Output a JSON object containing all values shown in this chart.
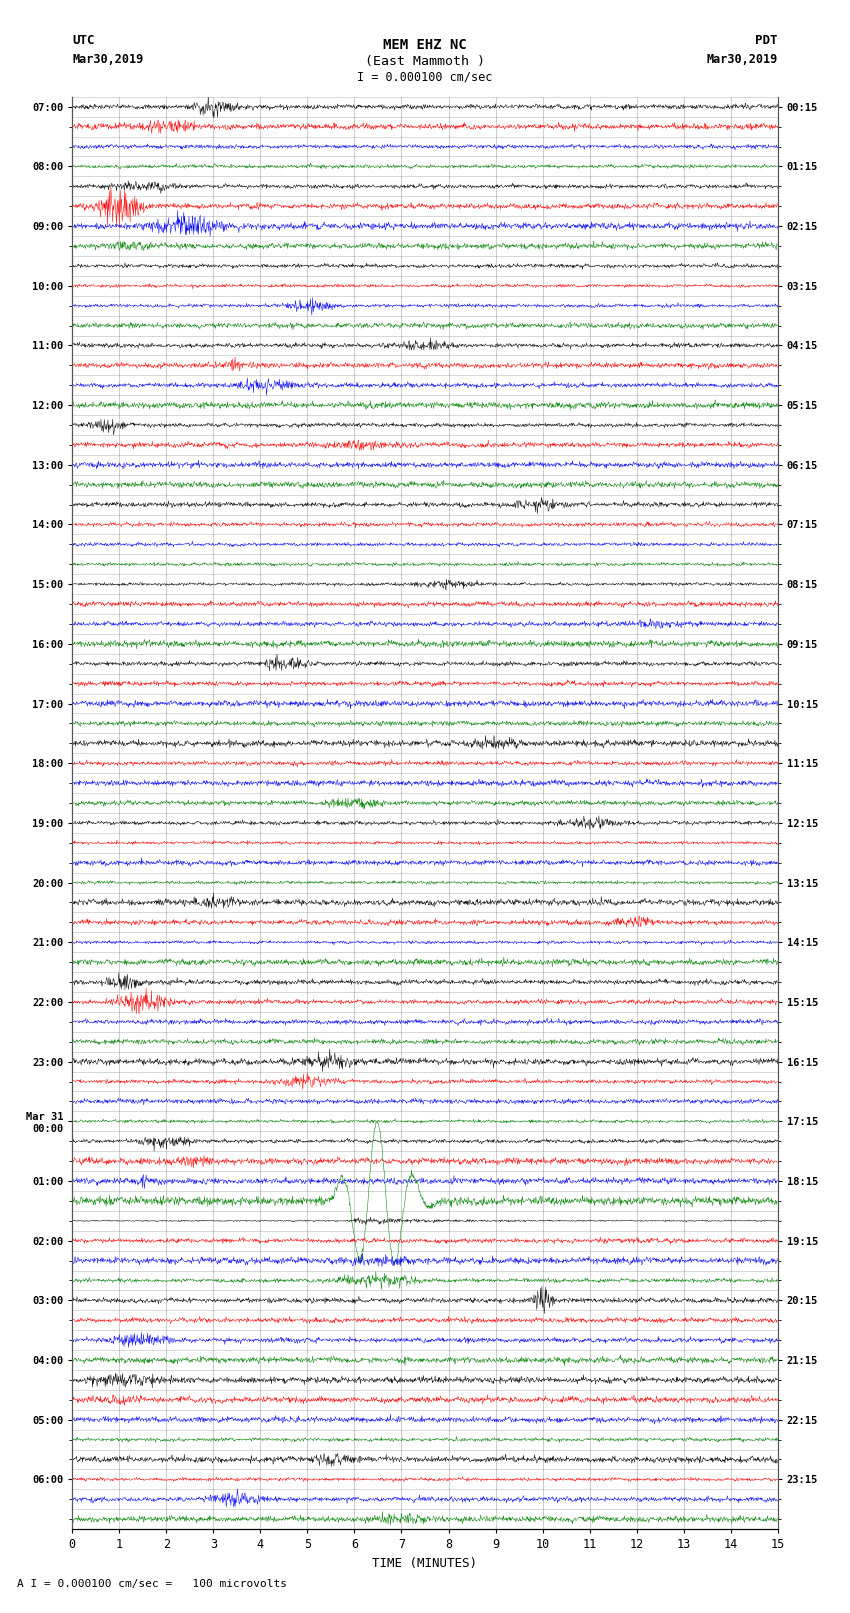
{
  "title_line1": "MEM EHZ NC",
  "title_line2": "(East Mammoth )",
  "scale_label": "I = 0.000100 cm/sec",
  "footer_label": "A I = 0.000100 cm/sec =   100 microvolts",
  "utc_label": "UTC",
  "utc_date": "Mar30,2019",
  "pdt_label": "PDT",
  "pdt_date": "Mar30,2019",
  "xlabel": "TIME (MINUTES)",
  "left_times": [
    "07:00",
    "",
    "",
    "08:00",
    "",
    "",
    "09:00",
    "",
    "",
    "10:00",
    "",
    "",
    "11:00",
    "",
    "",
    "12:00",
    "",
    "",
    "13:00",
    "",
    "",
    "14:00",
    "",
    "",
    "15:00",
    "",
    "",
    "16:00",
    "",
    "",
    "17:00",
    "",
    "",
    "18:00",
    "",
    "",
    "19:00",
    "",
    "",
    "20:00",
    "",
    "",
    "21:00",
    "",
    "",
    "22:00",
    "",
    "",
    "23:00",
    "",
    "",
    "Mar 31\n00:00",
    "",
    "",
    "01:00",
    "",
    "",
    "02:00",
    "",
    "",
    "03:00",
    "",
    "",
    "04:00",
    "",
    "",
    "05:00",
    "",
    "",
    "06:00",
    "",
    ""
  ],
  "right_times": [
    "00:15",
    "",
    "",
    "01:15",
    "",
    "",
    "02:15",
    "",
    "",
    "03:15",
    "",
    "",
    "04:15",
    "",
    "",
    "05:15",
    "",
    "",
    "06:15",
    "",
    "",
    "07:15",
    "",
    "",
    "08:15",
    "",
    "",
    "09:15",
    "",
    "",
    "10:15",
    "",
    "",
    "11:15",
    "",
    "",
    "12:15",
    "",
    "",
    "13:15",
    "",
    "",
    "14:15",
    "",
    "",
    "15:15",
    "",
    "",
    "16:15",
    "",
    "",
    "17:15",
    "",
    "",
    "18:15",
    "",
    "",
    "19:15",
    "",
    "",
    "20:15",
    "",
    "",
    "21:15",
    "",
    "",
    "22:15",
    "",
    "",
    "23:15",
    "",
    ""
  ],
  "num_rows": 72,
  "colors_cycle": [
    "black",
    "red",
    "blue",
    "green"
  ],
  "bg_color": "white",
  "grid_color": "#888888",
  "xlim": [
    0,
    15
  ],
  "xticks": [
    0,
    1,
    2,
    3,
    4,
    5,
    6,
    7,
    8,
    9,
    10,
    11,
    12,
    13,
    14,
    15
  ],
  "noise_amplitude": 0.055,
  "big_event_row": 54,
  "big_event_row2": 55,
  "big_event_row3": 56,
  "small_event_row": 60
}
